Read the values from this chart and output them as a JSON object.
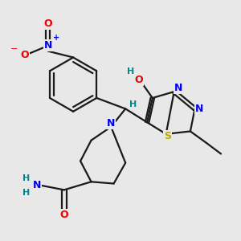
{
  "background_color": "#e8e8e8",
  "bond_color": "#1a1a1a",
  "atom_colors": {
    "N": "#0000ee",
    "O": "#ee0000",
    "S": "#bbaa00",
    "C": "#1a1a1a",
    "H": "#008888"
  },
  "figsize": [
    3.0,
    3.0
  ],
  "dpi": 100
}
